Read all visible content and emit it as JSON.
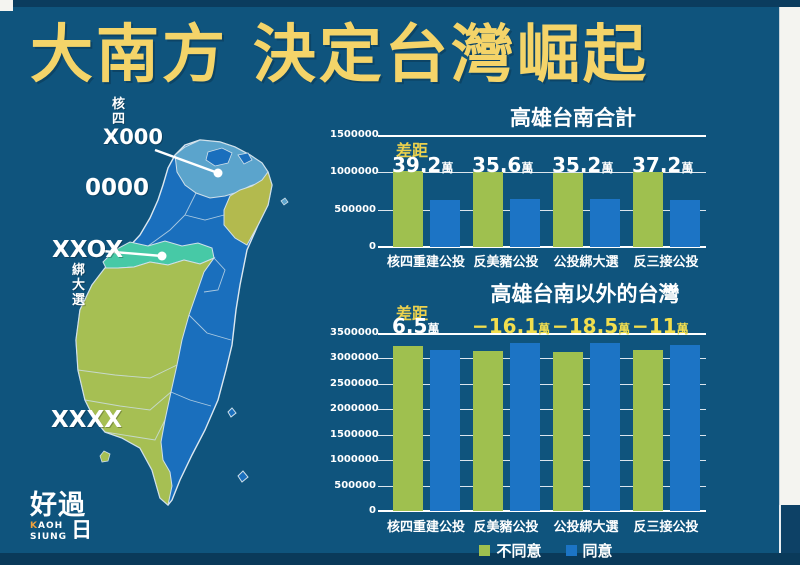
{
  "title": "大南方 決定台灣崛起",
  "map": {
    "callouts": {
      "nuke4_vertical": "核四",
      "x000": "X000",
      "zeros": "0000",
      "xxox": "XXOX",
      "bind_election_vertical": "綁大選",
      "xxxx": "XXXX"
    },
    "region_colors": {
      "north_metro": "#5ba4cc",
      "city_patch": "#1a6fbd",
      "yilan": "#b3ba4e",
      "main_blue": "#1a6fbd",
      "changhua_teal": "#47c9a6",
      "southwest_olive": "#a6bf53"
    }
  },
  "logo": {
    "cjk": "好過",
    "latin_k": "K",
    "latin_top_rest": "AOH",
    "latin_bottom": "SIUNG",
    "boxed_char": "日"
  },
  "legend": {
    "disagree": "不同意",
    "agree": "同意"
  },
  "colors": {
    "background": "#0f547d",
    "banner_text": "#f4d469",
    "bar_disagree": "#9fc04f",
    "bar_agree": "#1c74c5",
    "gap_label": "#edd24d",
    "diff_highlight": "#f2de4e"
  },
  "chart_data": [
    {
      "type": "bar",
      "title": "高雄台南合計",
      "gap_label": "差距",
      "categories": [
        "核四重建公投",
        "反美豬公投",
        "公投綁大選",
        "反三接公投"
      ],
      "series": [
        {
          "name": "不同意",
          "color": "#9fc04f",
          "values": [
            1020000,
            1000000,
            995000,
            1005000
          ]
        },
        {
          "name": "同意",
          "color": "#1c74c5",
          "values": [
            628000,
            644000,
            643000,
            633000
          ]
        }
      ],
      "diffs": [
        {
          "value": "39.2",
          "unit": "萬",
          "highlight": false
        },
        {
          "value": "35.6",
          "unit": "萬",
          "highlight": false
        },
        {
          "value": "35.2",
          "unit": "萬",
          "highlight": false
        },
        {
          "value": "37.2",
          "unit": "萬",
          "highlight": false
        }
      ],
      "ylim": [
        0,
        1500000
      ],
      "yticks": [
        0,
        500000,
        1000000,
        1500000
      ],
      "legend_position": "none",
      "grid": true
    },
    {
      "type": "bar",
      "title": "高雄台南以外的台灣",
      "gap_label": "差距",
      "categories": [
        "核四重建公投",
        "反美豬公投",
        "公投綁大選",
        "反三接公投"
      ],
      "series": [
        {
          "name": "不同意",
          "color": "#9fc04f",
          "values": [
            3240000,
            3140000,
            3120000,
            3160000
          ]
        },
        {
          "name": "同意",
          "color": "#1c74c5",
          "values": [
            3175000,
            3301000,
            3305000,
            3270000
          ]
        }
      ],
      "diffs": [
        {
          "value": "6.5",
          "unit": "萬",
          "highlight": false
        },
        {
          "value": "−16.1",
          "unit": "萬",
          "highlight": true
        },
        {
          "value": "−18.5",
          "unit": "萬",
          "highlight": true
        },
        {
          "value": "−11",
          "unit": "萬",
          "highlight": true
        }
      ],
      "ylim": [
        0,
        3500000
      ],
      "yticks": [
        0,
        500000,
        1000000,
        1500000,
        2000000,
        2500000,
        3000000,
        3500000
      ],
      "legend_position": "bottom",
      "grid": true
    }
  ]
}
